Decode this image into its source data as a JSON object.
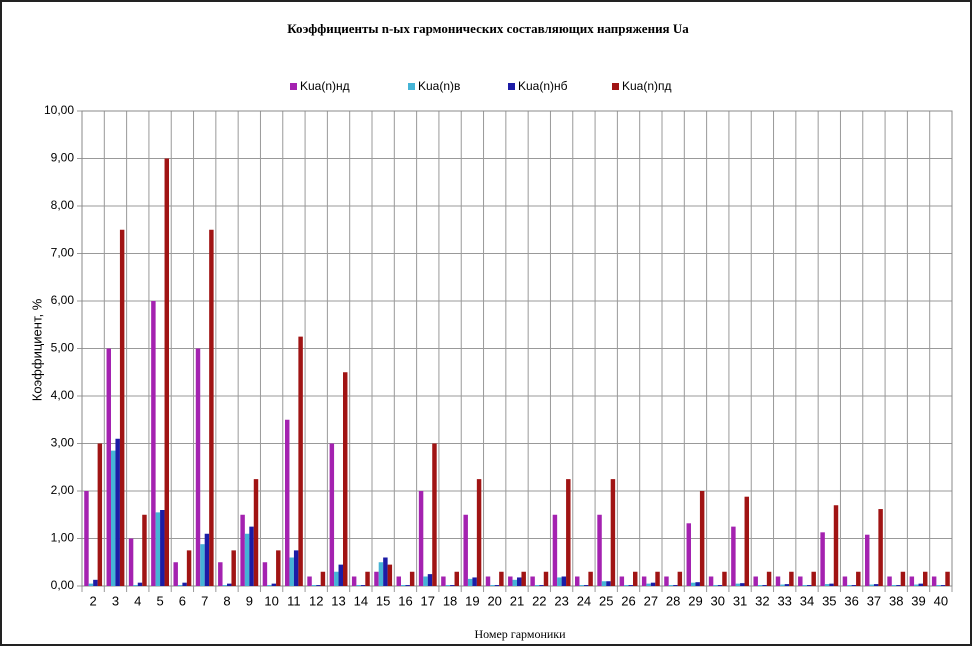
{
  "chart_data": {
    "type": "bar",
    "title": "Коэффициенты n-ых гармонических составляющих напряжения Ua",
    "x_label": "Номер гармоники",
    "y_label": "Коэффициент, %",
    "categories": [
      "2",
      "3",
      "4",
      "5",
      "6",
      "7",
      "8",
      "9",
      "10",
      "11",
      "12",
      "13",
      "14",
      "15",
      "16",
      "17",
      "18",
      "19",
      "20",
      "21",
      "22",
      "23",
      "24",
      "25",
      "26",
      "27",
      "28",
      "29",
      "30",
      "31",
      "32",
      "33",
      "34",
      "35",
      "36",
      "37",
      "38",
      "39",
      "40"
    ],
    "series": [
      {
        "name": "Kua(n)нд",
        "color": "#a422b0",
        "values": [
          2.0,
          5.0,
          1.0,
          6.0,
          0.5,
          5.0,
          0.5,
          1.5,
          0.5,
          3.5,
          0.2,
          3.0,
          0.2,
          0.3,
          0.2,
          2.0,
          0.2,
          1.5,
          0.2,
          0.2,
          0.2,
          1.5,
          0.2,
          1.5,
          0.2,
          0.2,
          0.2,
          1.32,
          0.2,
          1.25,
          0.2,
          0.2,
          0.2,
          1.13,
          0.2,
          1.08,
          0.2,
          0.2,
          0.2
        ]
      },
      {
        "name": "Kua(n)в",
        "color": "#45b4d6",
        "values": [
          0.05,
          2.85,
          0.02,
          1.55,
          0.02,
          0.88,
          0.02,
          1.1,
          0.02,
          0.6,
          0.02,
          0.3,
          0.02,
          0.5,
          0.02,
          0.2,
          0.02,
          0.15,
          0.02,
          0.13,
          0.02,
          0.18,
          0.02,
          0.1,
          0.02,
          0.05,
          0.02,
          0.07,
          0.02,
          0.05,
          0.02,
          0.03,
          0.02,
          0.04,
          0.02,
          0.03,
          0.02,
          0.03,
          0.02
        ]
      },
      {
        "name": "Kua(n)нб",
        "color": "#1c1ca6",
        "values": [
          0.13,
          3.1,
          0.07,
          1.6,
          0.07,
          1.1,
          0.05,
          1.25,
          0.05,
          0.75,
          0.02,
          0.45,
          0.02,
          0.6,
          0.02,
          0.25,
          0.02,
          0.18,
          0.02,
          0.18,
          0.02,
          0.2,
          0.02,
          0.1,
          0.02,
          0.07,
          0.02,
          0.08,
          0.02,
          0.06,
          0.02,
          0.04,
          0.02,
          0.05,
          0.02,
          0.04,
          0.02,
          0.05,
          0.02
        ]
      },
      {
        "name": "Kua(n)пд",
        "color": "#a01414",
        "values": [
          3.0,
          7.5,
          1.5,
          9.0,
          0.75,
          7.5,
          0.75,
          2.25,
          0.75,
          5.25,
          0.3,
          4.5,
          0.3,
          0.45,
          0.3,
          3.0,
          0.3,
          2.25,
          0.3,
          0.3,
          0.3,
          2.25,
          0.3,
          2.25,
          0.3,
          0.3,
          0.3,
          2.0,
          0.3,
          1.88,
          0.3,
          0.3,
          0.3,
          1.7,
          0.3,
          1.62,
          0.3,
          0.3,
          0.3
        ]
      }
    ],
    "ylim": [
      0,
      10
    ],
    "yticks": [
      {
        "value": 0,
        "label": "0,00"
      },
      {
        "value": 1,
        "label": "1,00"
      },
      {
        "value": 2,
        "label": "2,00"
      },
      {
        "value": 3,
        "label": "3,00"
      },
      {
        "value": 4,
        "label": "4,00"
      },
      {
        "value": 5,
        "label": "5,00"
      },
      {
        "value": 6,
        "label": "6,00"
      },
      {
        "value": 7,
        "label": "7,00"
      },
      {
        "value": 8,
        "label": "8,00"
      },
      {
        "value": 9,
        "label": "9,00"
      },
      {
        "value": 10,
        "label": "10,00"
      }
    ],
    "grid": true,
    "legend": "top"
  }
}
